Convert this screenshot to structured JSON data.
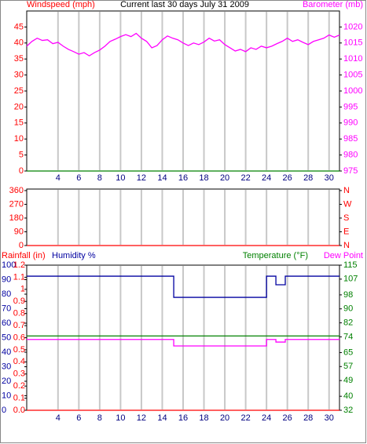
{
  "chart_data": [
    {
      "type": "line",
      "title": "Current last 30 days July 31 2009",
      "ylabel": "Windspeed (mph)",
      "y2label": "Barometer (mb)",
      "xlim": [
        1,
        31
      ],
      "xticks": [
        4,
        6,
        8,
        10,
        12,
        14,
        16,
        18,
        20,
        22,
        24,
        26,
        28,
        30
      ],
      "xtick_labels": true,
      "grid": true,
      "ylim": [
        0,
        50
      ],
      "yticks": [
        0,
        5,
        10,
        15,
        20,
        25,
        30,
        35,
        40,
        45
      ],
      "ytick_color": "#ff0000",
      "y2lim": [
        975,
        1025
      ],
      "y2ticks": [
        975,
        980,
        985,
        990,
        995,
        1000,
        1005,
        1010,
        1015,
        1020
      ],
      "y2tick_color": "#ff00ff",
      "series": [
        {
          "color": "#008000",
          "x": [
            1,
            31
          ],
          "values": [
            0,
            0
          ]
        },
        {
          "color": "#ff00ff",
          "axis": "y2",
          "x": [
            1,
            1.5,
            2,
            2.5,
            3,
            3.5,
            4,
            4.5,
            5,
            5.5,
            6,
            6.5,
            7,
            7.5,
            8,
            8.5,
            9,
            9.5,
            10,
            10.5,
            11,
            11.5,
            12,
            12.5,
            13,
            13.5,
            14,
            14.5,
            15,
            15.5,
            16,
            16.5,
            17,
            17.5,
            18,
            18.5,
            19,
            19.5,
            20,
            20.5,
            21,
            21.5,
            22,
            22.5,
            23,
            23.5,
            24,
            24.5,
            25,
            25.5,
            26,
            26.5,
            27,
            27.5,
            28,
            28.5,
            29,
            29.5,
            30,
            30.5,
            31
          ],
          "values": [
            1014,
            1015.5,
            1016.5,
            1015.8,
            1016,
            1014.8,
            1015.2,
            1014,
            1013,
            1012.3,
            1011.5,
            1012,
            1011,
            1012,
            1012.8,
            1014,
            1015.5,
            1016.2,
            1017,
            1017.6,
            1017,
            1018,
            1016.5,
            1015.5,
            1013.5,
            1014.2,
            1016,
            1017.2,
            1016.5,
            1016,
            1015,
            1014.2,
            1015,
            1014.5,
            1015.3,
            1016.5,
            1015.6,
            1016,
            1014.5,
            1013.5,
            1012.5,
            1013,
            1012.3,
            1013.5,
            1013,
            1014,
            1013.5,
            1014,
            1014.8,
            1015.5,
            1016.5,
            1015.5,
            1016,
            1015.2,
            1014.5,
            1015.5,
            1016,
            1016.5,
            1017.5,
            1016.8,
            1017.5
          ]
        }
      ]
    },
    {
      "type": "line",
      "xlim": [
        1,
        31
      ],
      "xticks": [
        4,
        6,
        8,
        10,
        12,
        14,
        16,
        18,
        20,
        22,
        24,
        26,
        28,
        30
      ],
      "xtick_labels": false,
      "grid": true,
      "ylim": [
        0,
        370
      ],
      "yticks": [
        0,
        90,
        180,
        270,
        360
      ],
      "ytick_color": "#ff0000",
      "y2lim": [
        0,
        370
      ],
      "y2ticks": [
        {
          "value": 0,
          "label": "N"
        },
        {
          "value": 90,
          "label": "E"
        },
        {
          "value": 180,
          "label": "S"
        },
        {
          "value": 270,
          "label": "W"
        },
        {
          "value": 360,
          "label": "N"
        }
      ],
      "y2tick_color": "#ff0000",
      "series": [
        {
          "color": "#ff0000",
          "x": [
            1,
            31
          ],
          "values": [
            0,
            0
          ]
        }
      ]
    },
    {
      "type": "line",
      "ylabel": "Humidity %",
      "y2label": "Temperature (°F)",
      "y3label": "Rainfall (in)",
      "xlim": [
        1,
        31
      ],
      "xticks": [
        4,
        6,
        8,
        10,
        12,
        14,
        16,
        18,
        20,
        22,
        24,
        26,
        28,
        30
      ],
      "xtick_labels": true,
      "grid": true,
      "ylim": [
        0,
        100
      ],
      "yticks": [
        0,
        10,
        20,
        30,
        40,
        50,
        60,
        70,
        80,
        90,
        100
      ],
      "ytick_color": "#0000a0",
      "y3lim": [
        0,
        1.2
      ],
      "y3ticks": [
        {
          "value": 0,
          "label": "0.0"
        },
        0.1,
        0.2,
        0.3,
        0.4,
        0.5,
        0.6,
        0.7,
        0.8,
        0.9,
        1,
        1.1,
        1.2
      ],
      "y3tick_color": "#ff0000",
      "y2lim": [
        32,
        115
      ],
      "y2ticks": [
        32,
        40,
        49,
        57,
        65,
        74,
        82,
        90,
        98,
        107,
        115
      ],
      "y2tick_color": "#008000",
      "series": [
        {
          "color": "#ff0000",
          "axis": "y3",
          "x": [
            1,
            31
          ],
          "values": [
            0,
            0
          ]
        },
        {
          "color": "#008000",
          "axis": "y2",
          "x": [
            1,
            31
          ],
          "values": [
            74.5,
            74.5
          ]
        },
        {
          "name": "Dew Point",
          "color": "#ff00ff",
          "axis": "y2",
          "x": [
            1,
            15.1,
            15.1,
            24,
            24,
            24.9,
            24.9,
            25.8,
            25.8,
            31
          ],
          "values": [
            72.5,
            72.5,
            68.8,
            68.8,
            72.5,
            72.5,
            71,
            71,
            72.5,
            72.5
          ]
        },
        {
          "color": "#0000a0",
          "x": [
            1,
            15.1,
            15.1,
            24,
            24,
            24.9,
            24.9,
            25.8,
            25.8,
            31
          ],
          "values": [
            92.4,
            92.4,
            77.8,
            77.8,
            92.4,
            92.4,
            86.5,
            86.5,
            92.4,
            92.4
          ]
        }
      ]
    }
  ]
}
